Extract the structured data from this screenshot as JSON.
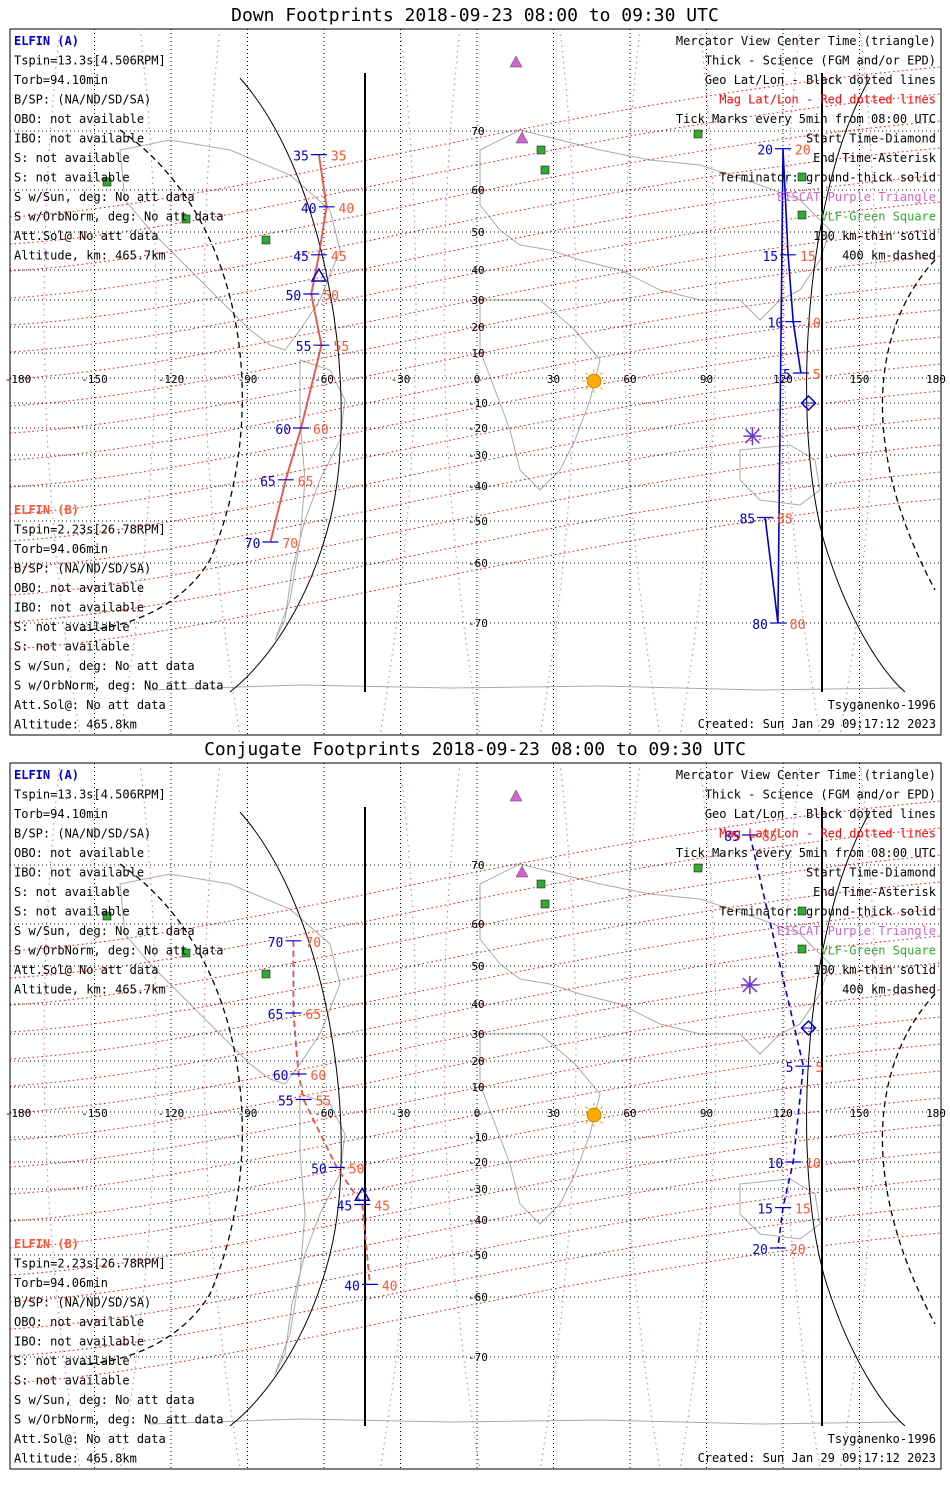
{
  "panels": [
    {
      "title": "Down Footprints 2018-09-23 08:00 to 09:30 UTC",
      "kind": "down",
      "elfin_a": {
        "name": "ELFIN (A)",
        "lines": [
          "Tspin=13.3s[4.506RPM]",
          "Torb=94.10min",
          "B/SP: (NA/ND/SD/SA)",
          "OBO: not available",
          "IBO: not available",
          "S: not available",
          "S: not available",
          "S w/Sun, deg: No att data",
          "S w/OrbNorm, deg: No att data",
          "Att.Sol@ No att data",
          "Altitude, km: 465.7km"
        ]
      },
      "elfin_b": {
        "name": "ELFIN (B)",
        "lines": [
          "Tspin=2.23s[26.78RPM]",
          "Torb=94.06min",
          "B/SP: (NA/ND/SD/SA)",
          "OBO: not available",
          "IBO: not available",
          "S: not available",
          "S: not available",
          "S w/Sun, deg: No att data",
          "S w/OrbNorm, deg: No att data",
          "Att.Sol@: No att data",
          "Altitude: 465.8km"
        ]
      },
      "legend": [
        {
          "text": "Mercator View Center Time (triangle)",
          "color": "#000000"
        },
        {
          "text": "Thick - Science (FGM and/or EPD)",
          "color": "#000000"
        },
        {
          "text": "Geo Lat/Lon - Black dotted lines",
          "color": "#000000"
        },
        {
          "text": "Mag Lat/Lon - Red dotted lines",
          "color": "#ff0000"
        },
        {
          "text": "Tick Marks every 5min from 08:00 UTC",
          "color": "#000000"
        },
        {
          "text": "Start Time-Diamond",
          "color": "#000000"
        },
        {
          "text": "End Time-Asterisk",
          "color": "#000000"
        },
        {
          "text": "Terminator: ground-thick solid",
          "color": "#000000"
        },
        {
          "text": "EISCAT-Purple Triangle",
          "color": "#cc66cc"
        },
        {
          "text": "VLF-Green Square",
          "color": "#33aa33"
        },
        {
          "text": "100 km-thin solid",
          "color": "#000000"
        },
        {
          "text": "400 km-dashed",
          "color": "#000000"
        }
      ],
      "footer_left": "",
      "footer_right1": "Tsyganenko-1996",
      "footer_right2": "Created: Sun Jan 29 09:17:12 2023",
      "ticks_a": [
        {
          "min": "35",
          "lon": -62,
          "lat": 66
        },
        {
          "min": "40",
          "lon": -59,
          "lat": 56
        },
        {
          "min": "45",
          "lon": -62,
          "lat": 44
        },
        {
          "min": "50",
          "lon": -65,
          "lat": 32
        },
        {
          "min": "55",
          "lon": -61,
          "lat": 13
        },
        {
          "min": "60",
          "lon": -69,
          "lat": -20
        },
        {
          "min": "65",
          "lon": -75,
          "lat": -38
        },
        {
          "min": "70",
          "lon": -81,
          "lat": -55
        }
      ],
      "ticks_b": [
        {
          "min": "5",
          "lon": 127,
          "lat": 2
        },
        {
          "min": "10",
          "lon": 124,
          "lat": 22
        },
        {
          "min": "15",
          "lon": 122,
          "lat": 44
        },
        {
          "min": "20",
          "lon": 120,
          "lat": 67
        },
        {
          "min": "80",
          "lon": 118,
          "lat": -70
        },
        {
          "min": "85",
          "lon": 113,
          "lat": -49
        }
      ],
      "triangle_lonlat": [
        -62,
        38
      ],
      "diamond_lonlat": [
        130,
        -10
      ],
      "asterisk_lonlat": [
        108,
        -23
      ]
    },
    {
      "title": "Conjugate Footprints 2018-09-23 08:00 to 09:30 UTC",
      "kind": "conj",
      "elfin_a": {
        "name": "ELFIN (A)",
        "lines": [
          "Tspin=13.3s[4.506RPM]",
          "Torb=94.10min",
          "B/SP: (NA/ND/SD/SA)",
          "OBO: not available",
          "IBO: not available",
          "S: not available",
          "S: not available",
          "S w/Sun, deg: No att data",
          "S w/OrbNorm, deg: No att data",
          "Att.Sol@ No att data",
          "Altitude, km: 465.7km"
        ]
      },
      "elfin_b": {
        "name": "ELFIN (B)",
        "lines": [
          "Tspin=2.23s[26.78RPM]",
          "Torb=94.06min",
          "B/SP: (NA/ND/SD/SA)",
          "OBO: not available",
          "IBO: not available",
          "S: not available",
          "S: not available",
          "S w/Sun, deg: No att data",
          "S w/OrbNorm, deg: No att data",
          "Att.Sol@: No att data",
          "Altitude: 465.8km"
        ]
      },
      "legend": [
        {
          "text": "Mercator View Center Time (triangle)",
          "color": "#000000"
        },
        {
          "text": "Thick - Science (FGM and/or EPD)",
          "color": "#000000"
        },
        {
          "text": "Geo Lat/Lon - Black dotted lines",
          "color": "#000000"
        },
        {
          "text": "Mag Lat/Lon - Red dotted lines",
          "color": "#ff0000"
        },
        {
          "text": "Tick Marks every 5min from 08:00 UTC",
          "color": "#000000"
        },
        {
          "text": "Start Time-Diamond",
          "color": "#000000"
        },
        {
          "text": "End Time-Asterisk",
          "color": "#000000"
        },
        {
          "text": "Terminator: ground-thick solid",
          "color": "#000000"
        },
        {
          "text": "EISCAT-Purple Triangle",
          "color": "#cc66cc"
        },
        {
          "text": "VLF-Green Square",
          "color": "#33aa33"
        },
        {
          "text": "100 km-thin solid",
          "color": "#000000"
        },
        {
          "text": "400 km-dashed",
          "color": "#000000"
        }
      ],
      "footer_right1": "Tsyganenko-1996",
      "footer_right2": "Created: Sun Jan 29 09:17:12 2023",
      "ticks_a": [
        {
          "min": "70",
          "lon": -72,
          "lat": 56
        },
        {
          "min": "65",
          "lon": -72,
          "lat": 37
        },
        {
          "min": "60",
          "lon": -70,
          "lat": 15
        },
        {
          "min": "55",
          "lon": -68,
          "lat": 5
        },
        {
          "min": "50",
          "lon": -55,
          "lat": -22
        },
        {
          "min": "45",
          "lon": -45,
          "lat": -35
        },
        {
          "min": "40",
          "lon": -42,
          "lat": -57
        }
      ],
      "ticks_b": [
        {
          "min": "85",
          "lon": 107,
          "lat": 75
        },
        {
          "min": "5",
          "lon": 128,
          "lat": 18
        },
        {
          "min": "10",
          "lon": 124,
          "lat": -20
        },
        {
          "min": "15",
          "lon": 120,
          "lat": -36
        },
        {
          "min": "20",
          "lon": 118,
          "lat": -48
        }
      ],
      "triangle_lonlat": [
        -45,
        -32
      ],
      "diamond_lonlat": [
        130,
        32
      ],
      "asterisk_lonlat": [
        107,
        45
      ]
    }
  ],
  "map": {
    "lon_ticks": [
      "-180",
      "-150",
      "-120",
      "-90",
      "-60",
      "-30",
      "0",
      "30",
      "60",
      "90",
      "120",
      "150",
      "180"
    ],
    "lat_ticks": [
      "70",
      "60",
      "50",
      "40",
      "30",
      "20",
      "10",
      "-10",
      "-20",
      "-30",
      "-40",
      "-50",
      "-60",
      "-70"
    ]
  },
  "colors": {
    "elfin_a": "#0000cc",
    "elfin_b": "#ff5533",
    "magnetic_grid": "#ff0000",
    "eiscat": "#cc66cc",
    "vlf": "#33aa33",
    "sun": "#ffaa00"
  }
}
